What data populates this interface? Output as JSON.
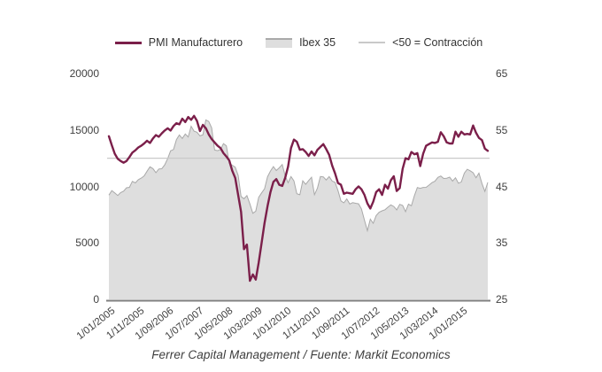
{
  "legend": {
    "items": [
      {
        "label": "PMI Manufacturero"
      },
      {
        "label": "Ibex 35"
      },
      {
        "label": "<50 = Contracción"
      }
    ]
  },
  "footer": {
    "source": "Ferrer Capital Management / Fuente: Markit Economics"
  },
  "colors": {
    "pmi_line": "#7b1f4a",
    "ibex_fill": "#dedede",
    "ibex_stroke": "#a9a9a9",
    "contraction_line": "#c9c9c9",
    "axis_line": "#7f7f7f",
    "text": "#404040",
    "background": "#ffffff"
  },
  "chart_data": {
    "type": "line",
    "title": "",
    "xlabel": "",
    "ylabel_left": "",
    "ylabel_right": "",
    "x_frequency": "monthly",
    "x_start": "2005-01",
    "x_end": "2015-10",
    "grid": false,
    "legend_position": "top",
    "x_tick_labels": [
      "1/01/2005",
      "1/11/2005",
      "1/09/2006",
      "1/07/2007",
      "1/05/2008",
      "1/03/2009",
      "1/01/2010",
      "1/11/2010",
      "1/09/2011",
      "1/07/2012",
      "1/05/2013",
      "1/03/2014",
      "1/01/2015"
    ],
    "x_tick_month_step": 10,
    "y_left": {
      "ticks": [
        0,
        5000,
        10000,
        15000,
        20000
      ],
      "range": [
        0,
        20000
      ]
    },
    "y_right": {
      "ticks": [
        25,
        35,
        45,
        55,
        65
      ],
      "range": [
        25,
        65
      ]
    },
    "reference_line": {
      "label": "<50 = Contracción",
      "value": 50,
      "axis": "right",
      "color": "#c9c9c9"
    },
    "series": [
      {
        "name": "PMI Manufacturero",
        "axis": "right",
        "style": "line",
        "color": "#7b1f4a",
        "values": [
          53.9,
          52.3,
          50.8,
          49.9,
          49.5,
          49.2,
          49.5,
          50.2,
          51.0,
          51.4,
          51.9,
          52.2,
          52.6,
          53.1,
          52.7,
          53.5,
          54.1,
          53.8,
          54.4,
          54.9,
          55.3,
          54.9,
          55.7,
          56.2,
          56.0,
          57.0,
          56.4,
          57.3,
          56.8,
          57.5,
          56.6,
          54.8,
          55.9,
          55.3,
          54.2,
          53.4,
          52.8,
          52.2,
          51.8,
          50.9,
          50.3,
          49.6,
          47.8,
          46.5,
          43.5,
          40.5,
          33.9,
          34.7,
          28.3,
          29.4,
          28.5,
          31.5,
          35.0,
          38.5,
          41.5,
          44.0,
          45.8,
          46.3,
          45.3,
          45.1,
          46.5,
          48.5,
          51.8,
          53.3,
          52.9,
          51.5,
          51.6,
          51.1,
          50.4,
          51.2,
          50.5,
          51.5,
          52.0,
          52.5,
          51.6,
          50.6,
          48.7,
          47.3,
          45.6,
          45.3,
          43.7,
          43.9,
          43.8,
          43.7,
          44.5,
          45.0,
          44.5,
          43.5,
          42.0,
          41.1,
          42.3,
          44.0,
          44.5,
          43.5,
          45.3,
          44.6,
          46.1,
          46.8,
          44.2,
          44.7,
          48.1,
          50.0,
          49.8,
          51.1,
          50.7,
          50.9,
          48.6,
          50.8,
          52.2,
          52.5,
          52.8,
          52.7,
          52.9,
          54.6,
          53.9,
          52.8,
          52.6,
          52.6,
          54.7,
          53.8,
          54.7,
          54.2,
          54.3,
          54.2,
          55.8,
          54.5,
          53.6,
          53.2,
          51.7,
          51.3
        ]
      },
      {
        "name": "Ibex 35",
        "axis": "left",
        "style": "area",
        "fill": "#dedede",
        "stroke": "#a9a9a9",
        "values": [
          9230,
          9628,
          9427,
          9199,
          9462,
          9583,
          9885,
          9920,
          10449,
          10316,
          10596,
          10734,
          10930,
          11352,
          11742,
          11573,
          11225,
          11549,
          11567,
          11907,
          12465,
          13152,
          13268,
          14147,
          14553,
          14248,
          14641,
          14374,
          15330,
          14892,
          14802,
          14479,
          14576,
          15890,
          15759,
          15182,
          13229,
          13170,
          13269,
          13798,
          13600,
          12046,
          11881,
          11707,
          10988,
          9116,
          8910,
          9195,
          8450,
          7620,
          7815,
          9038,
          9424,
          9787,
          10855,
          11365,
          11756,
          11414,
          11644,
          11940,
          10948,
          10333,
          10871,
          10492,
          9359,
          9263,
          10499,
          10187,
          10514,
          10812,
          9267,
          9859,
          10878,
          10850,
          10576,
          10879,
          10476,
          10359,
          9630,
          8718,
          8546,
          8895,
          8449,
          8566,
          8509,
          8465,
          8008,
          7011,
          6090,
          7102,
          6738,
          7420,
          7708,
          7842,
          7934,
          8168,
          8362,
          8230,
          7920,
          8419,
          8320,
          7763,
          8433,
          8290,
          9186,
          9908,
          9838,
          9916,
          9920,
          10114,
          10340,
          10459,
          10798,
          10924,
          10707,
          10728,
          10825,
          10477,
          10770,
          10280,
          10403,
          11178,
          11521,
          11385,
          11217,
          10769,
          11180,
          10259,
          9560,
          10360
        ]
      }
    ]
  }
}
